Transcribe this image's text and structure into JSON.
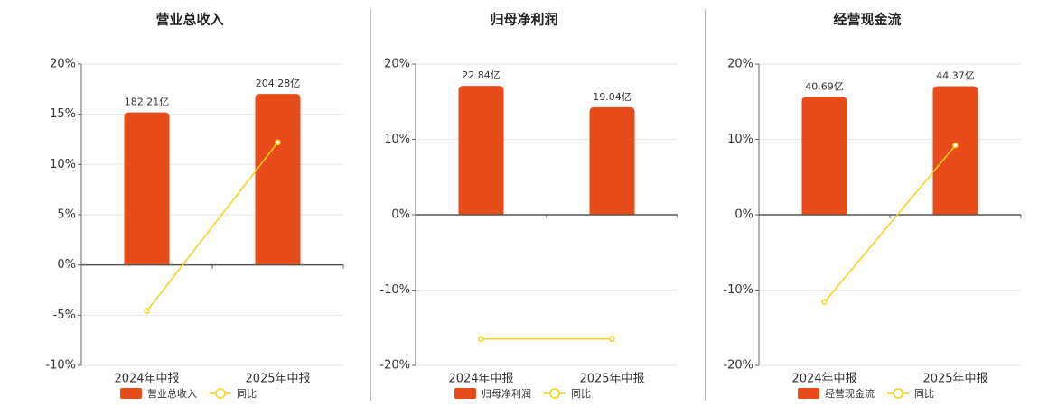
{
  "chart_data": [
    {
      "type": "bar",
      "title": "营业总收入",
      "categories": [
        "2024年中报",
        "2025年中报"
      ],
      "series": [
        {
          "name": "营业总收入",
          "type": "bar",
          "axis": "y2",
          "color": "#e84c1a",
          "values": [
            182.21,
            204.28
          ],
          "value_labels": [
            "182.21亿",
            "204.28亿"
          ]
        },
        {
          "name": "同比",
          "type": "line",
          "color": "#f2d21a",
          "values": [
            -4.6,
            12.2
          ]
        }
      ],
      "ylim": [
        -10,
        20
      ],
      "yticks": [
        {
          "value": -10,
          "label": "-10%"
        },
        {
          "value": -5,
          "label": "-5%"
        },
        {
          "value": 0,
          "label": "0%"
        },
        {
          "value": 5,
          "label": "5%"
        },
        {
          "value": 10,
          "label": "10%"
        },
        {
          "value": 15,
          "label": "15%"
        },
        {
          "value": 20,
          "label": "20%"
        }
      ],
      "y2lim": [
        -120,
        240
      ],
      "grid": true
    },
    {
      "type": "bar",
      "title": "归母净利润",
      "categories": [
        "2024年中报",
        "2025年中报"
      ],
      "series": [
        {
          "name": "归母净利润",
          "type": "bar",
          "axis": "y2",
          "color": "#e84c1a",
          "values": [
            22.84,
            19.04
          ],
          "value_labels": [
            "22.84亿",
            "19.04亿"
          ]
        },
        {
          "name": "同比",
          "type": "line",
          "color": "#f2d21a",
          "values": [
            -16.5,
            -16.5
          ]
        }
      ],
      "ylim": [
        -20,
        20
      ],
      "yticks": [
        {
          "value": -20,
          "label": "-20%"
        },
        {
          "value": -10,
          "label": "-10%"
        },
        {
          "value": 0,
          "label": "0%"
        },
        {
          "value": 10,
          "label": "10%"
        },
        {
          "value": 20,
          "label": "20%"
        }
      ],
      "y2lim": [
        -26.7,
        26.7
      ],
      "grid": true
    },
    {
      "type": "bar",
      "title": "经营现金流",
      "categories": [
        "2024年中报",
        "2025年中报"
      ],
      "series": [
        {
          "name": "经营现金流",
          "type": "bar",
          "axis": "y2",
          "color": "#e84c1a",
          "values": [
            40.69,
            44.37
          ],
          "value_labels": [
            "40.69亿",
            "44.37亿"
          ]
        },
        {
          "name": "同比",
          "type": "line",
          "color": "#f2d21a",
          "values": [
            -11.6,
            9.2
          ]
        }
      ],
      "ylim": [
        -20,
        20
      ],
      "yticks": [
        {
          "value": -20,
          "label": "-20%"
        },
        {
          "value": -10,
          "label": "-10%"
        },
        {
          "value": 0,
          "label": "0%"
        },
        {
          "value": 10,
          "label": "10%"
        },
        {
          "value": 20,
          "label": "20%"
        }
      ],
      "y2lim": [
        -52,
        52
      ],
      "grid": true
    }
  ]
}
